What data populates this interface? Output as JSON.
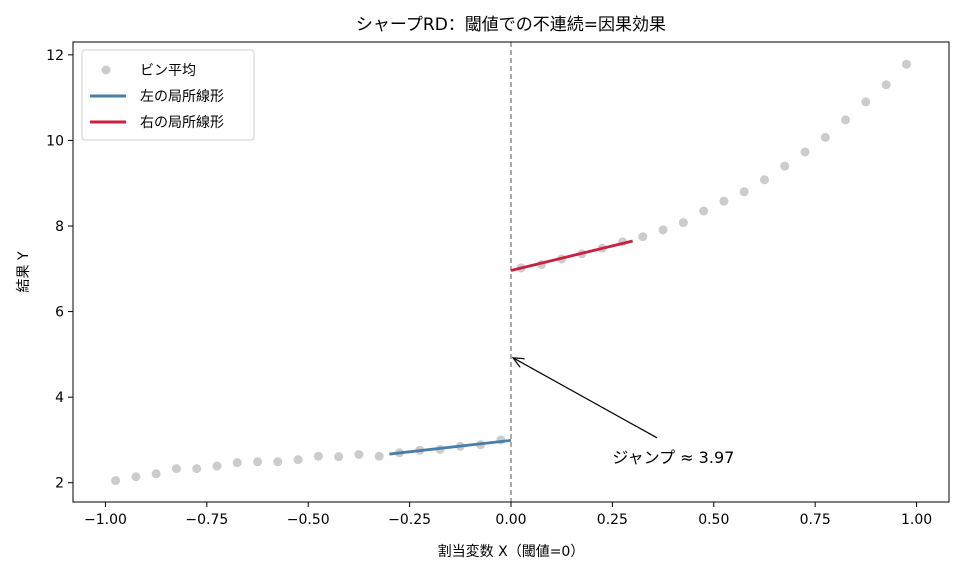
{
  "chart_data": {
    "type": "scatter",
    "title": "シャープRD：閾値での不連続=因果効果",
    "xlabel": "割当変数 X（閾値=0）",
    "ylabel": "結果 Y",
    "xlim": [
      -1.08,
      1.08
    ],
    "ylim": [
      1.55,
      12.3
    ],
    "xticks": [
      -1.0,
      -0.75,
      -0.5,
      -0.25,
      0.0,
      0.25,
      0.5,
      0.75,
      1.0
    ],
    "xtick_labels": [
      "−1.00",
      "−0.75",
      "−0.50",
      "−0.25",
      "0.00",
      "0.25",
      "0.50",
      "0.75",
      "1.00"
    ],
    "yticks": [
      2,
      4,
      6,
      8,
      10,
      12
    ],
    "ytick_labels": [
      "2",
      "4",
      "6",
      "8",
      "10",
      "12"
    ],
    "grid": false,
    "legend_position": "top-left",
    "threshold": 0.0,
    "series": [
      {
        "name": "ビン平均",
        "kind": "scatter",
        "color": "#cccccc",
        "points": [
          [
            -0.975,
            2.05
          ],
          [
            -0.925,
            2.14
          ],
          [
            -0.875,
            2.21
          ],
          [
            -0.825,
            2.33
          ],
          [
            -0.775,
            2.33
          ],
          [
            -0.725,
            2.39
          ],
          [
            -0.675,
            2.47
          ],
          [
            -0.625,
            2.49
          ],
          [
            -0.575,
            2.49
          ],
          [
            -0.525,
            2.54
          ],
          [
            -0.475,
            2.62
          ],
          [
            -0.425,
            2.61
          ],
          [
            -0.375,
            2.66
          ],
          [
            -0.325,
            2.62
          ],
          [
            -0.275,
            2.7
          ],
          [
            -0.225,
            2.76
          ],
          [
            -0.175,
            2.78
          ],
          [
            -0.125,
            2.85
          ],
          [
            -0.075,
            2.89
          ],
          [
            -0.025,
            3.0
          ],
          [
            0.025,
            7.02
          ],
          [
            0.075,
            7.1
          ],
          [
            0.125,
            7.23
          ],
          [
            0.175,
            7.35
          ],
          [
            0.225,
            7.48
          ],
          [
            0.275,
            7.63
          ],
          [
            0.325,
            7.75
          ],
          [
            0.375,
            7.91
          ],
          [
            0.425,
            8.08
          ],
          [
            0.475,
            8.35
          ],
          [
            0.525,
            8.58
          ],
          [
            0.575,
            8.8
          ],
          [
            0.625,
            9.08
          ],
          [
            0.675,
            9.4
          ],
          [
            0.725,
            9.73
          ],
          [
            0.775,
            10.07
          ],
          [
            0.825,
            10.48
          ],
          [
            0.875,
            10.9
          ],
          [
            0.925,
            11.3
          ],
          [
            0.975,
            11.78
          ]
        ]
      },
      {
        "name": "左の局所線形",
        "kind": "line",
        "color": "#4a7ea8",
        "points": [
          [
            -0.3,
            2.67
          ],
          [
            0.0,
            2.99
          ]
        ]
      },
      {
        "name": "右の局所線形",
        "kind": "line",
        "color": "#c8203e",
        "points": [
          [
            0.0,
            6.96
          ],
          [
            0.3,
            7.65
          ]
        ]
      }
    ],
    "annotation": {
      "text": "ジャンプ ≈ 3.97",
      "text_at": [
        0.25,
        2.6
      ],
      "arrow_from": [
        0.36,
        3.05
      ],
      "arrow_to": [
        0.005,
        4.92
      ]
    }
  }
}
